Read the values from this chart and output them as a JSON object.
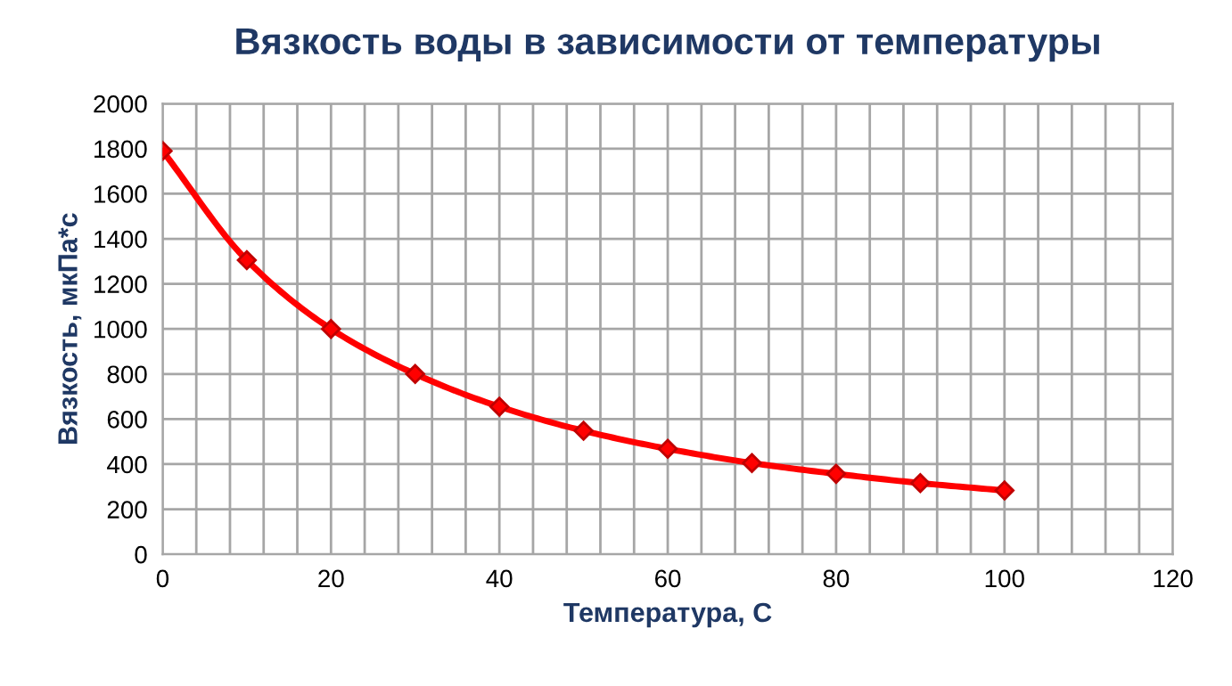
{
  "chart_data": {
    "type": "line",
    "title": "Вязкость воды в зависимости от температуры",
    "xlabel": "Температура, С",
    "ylabel": "Вязкость, мкПа*с",
    "x": [
      0,
      10,
      20,
      30,
      40,
      50,
      60,
      70,
      80,
      90,
      100
    ],
    "series": [
      {
        "color": "#ff0000",
        "values": [
          1790,
          1305,
          1000,
          800,
          655,
          548,
          468,
          405,
          357,
          316,
          283
        ]
      }
    ],
    "xlim": [
      0,
      120
    ],
    "ylim": [
      0,
      2000
    ],
    "xticks": [
      0,
      {
        "value": 4,
        "label": null
      },
      {
        "value": 8,
        "label": null
      },
      {
        "value": 12,
        "label": null
      },
      {
        "value": 16,
        "label": null
      },
      20,
      {
        "value": 24,
        "label": null
      },
      {
        "value": 28,
        "label": null
      },
      {
        "value": 32,
        "label": null
      },
      {
        "value": 36,
        "label": null
      },
      40,
      {
        "value": 44,
        "label": null
      },
      {
        "value": 48,
        "label": null
      },
      {
        "value": 52,
        "label": null
      },
      {
        "value": 56,
        "label": null
      },
      60,
      {
        "value": 64,
        "label": null
      },
      {
        "value": 68,
        "label": null
      },
      {
        "value": 72,
        "label": null
      },
      {
        "value": 76,
        "label": null
      },
      80,
      {
        "value": 84,
        "label": null
      },
      {
        "value": 88,
        "label": null
      },
      {
        "value": 92,
        "label": null
      },
      {
        "value": 96,
        "label": null
      },
      100,
      {
        "value": 104,
        "label": null
      },
      {
        "value": 108,
        "label": null
      },
      {
        "value": 112,
        "label": null
      },
      {
        "value": 116,
        "label": null
      },
      120
    ],
    "yticks": [
      0,
      200,
      400,
      600,
      800,
      1000,
      1200,
      1400,
      1600,
      1800,
      2000
    ],
    "grid": true,
    "marker": "diamond",
    "line_style": "solid",
    "legend": false
  }
}
